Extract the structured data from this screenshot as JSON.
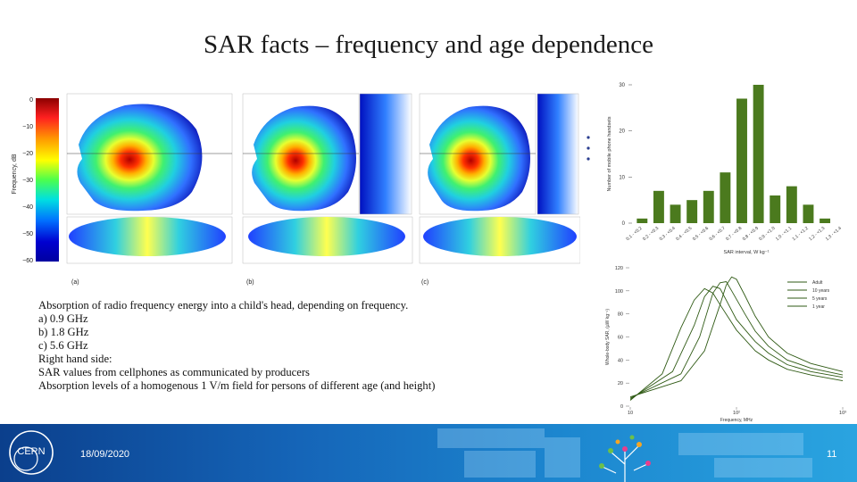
{
  "title": "SAR facts – frequency and age dependence",
  "left_figure": {
    "ylabel": "Frequency, dB",
    "scale_ticks": [
      "0",
      "−10",
      "−20",
      "−30",
      "−40",
      "−50",
      "−60"
    ],
    "panel_labels": [
      "(a)",
      "(b)",
      "(c)"
    ]
  },
  "caption": {
    "lines": [
      "Absorption of radio frequency energy into a child's head, depending on frequency.",
      "a) 0.9 GHz",
      "b) 1.8 GHz",
      "c) 5.6 GHz",
      "Right hand side:",
      "SAR values from cellphones as communicated by producers",
      "Absorption levels of a homogenous 1 V/m field for persons of different age (and height)"
    ]
  },
  "chart_data": [
    {
      "type": "bar",
      "title": "",
      "xlabel": "SAR interval, W kg⁻¹",
      "ylabel": "Number of mobile phone handsets",
      "ylim": [
        0,
        30
      ],
      "yticks": [
        "0",
        "10",
        "20",
        "30"
      ],
      "categories": [
        "0.1 - <0.2",
        "0.2 - <0.3",
        "0.3 - <0.4",
        "0.4 - <0.5",
        "0.5 - <0.6",
        "0.6 - <0.7",
        "0.7 - <0.8",
        "0.8 - <0.9",
        "0.9 - <1.0",
        "1.0 - <1.1",
        "1.1 - <1.2",
        "1.2 - <1.3",
        "1.3 - <1.4"
      ],
      "values": [
        1,
        7,
        4,
        5,
        7,
        11,
        27,
        30,
        6,
        8,
        4,
        1,
        0
      ],
      "color": "#4b7a1e"
    },
    {
      "type": "line",
      "title": "",
      "xlabel": "Frequency, MHz",
      "ylabel": "Whole-body SAR, (µW kg⁻¹)",
      "x_scale": "log",
      "xlim": [
        10,
        1000
      ],
      "ylim": [
        0,
        120
      ],
      "yticks": [
        "0",
        "20",
        "40",
        "60",
        "80",
        "100",
        "120"
      ],
      "xticks": [
        "10",
        "10²",
        "10³"
      ],
      "legend_position": "top-right",
      "series": [
        {
          "name": "Adult",
          "x": [
            10,
            30,
            50,
            70,
            80,
            90,
            100,
            120,
            150,
            200,
            300,
            500,
            1000
          ],
          "y": [
            8,
            22,
            48,
            88,
            105,
            112,
            110,
            96,
            78,
            60,
            46,
            37,
            30
          ]
        },
        {
          "name": "10 years",
          "x": [
            10,
            30,
            45,
            60,
            70,
            80,
            90,
            120,
            150,
            200,
            300,
            500,
            1000
          ],
          "y": [
            7,
            28,
            60,
            98,
            107,
            108,
            100,
            80,
            65,
            52,
            40,
            33,
            27
          ]
        },
        {
          "name": "5 years",
          "x": [
            10,
            25,
            40,
            50,
            60,
            70,
            80,
            100,
            150,
            200,
            300,
            500,
            1000
          ],
          "y": [
            6,
            30,
            70,
            95,
            104,
            102,
            92,
            75,
            56,
            46,
            36,
            30,
            25
          ]
        },
        {
          "name": "1 year",
          "x": [
            10,
            20,
            30,
            40,
            50,
            60,
            70,
            100,
            150,
            200,
            300,
            500,
            1000
          ],
          "y": [
            5,
            28,
            68,
            92,
            102,
            98,
            88,
            66,
            48,
            40,
            32,
            27,
            22
          ]
        }
      ],
      "color": "#2f5a14"
    }
  ],
  "footer": {
    "date": "18/09/2020",
    "page_number": "11",
    "logo_text": "CERN"
  }
}
